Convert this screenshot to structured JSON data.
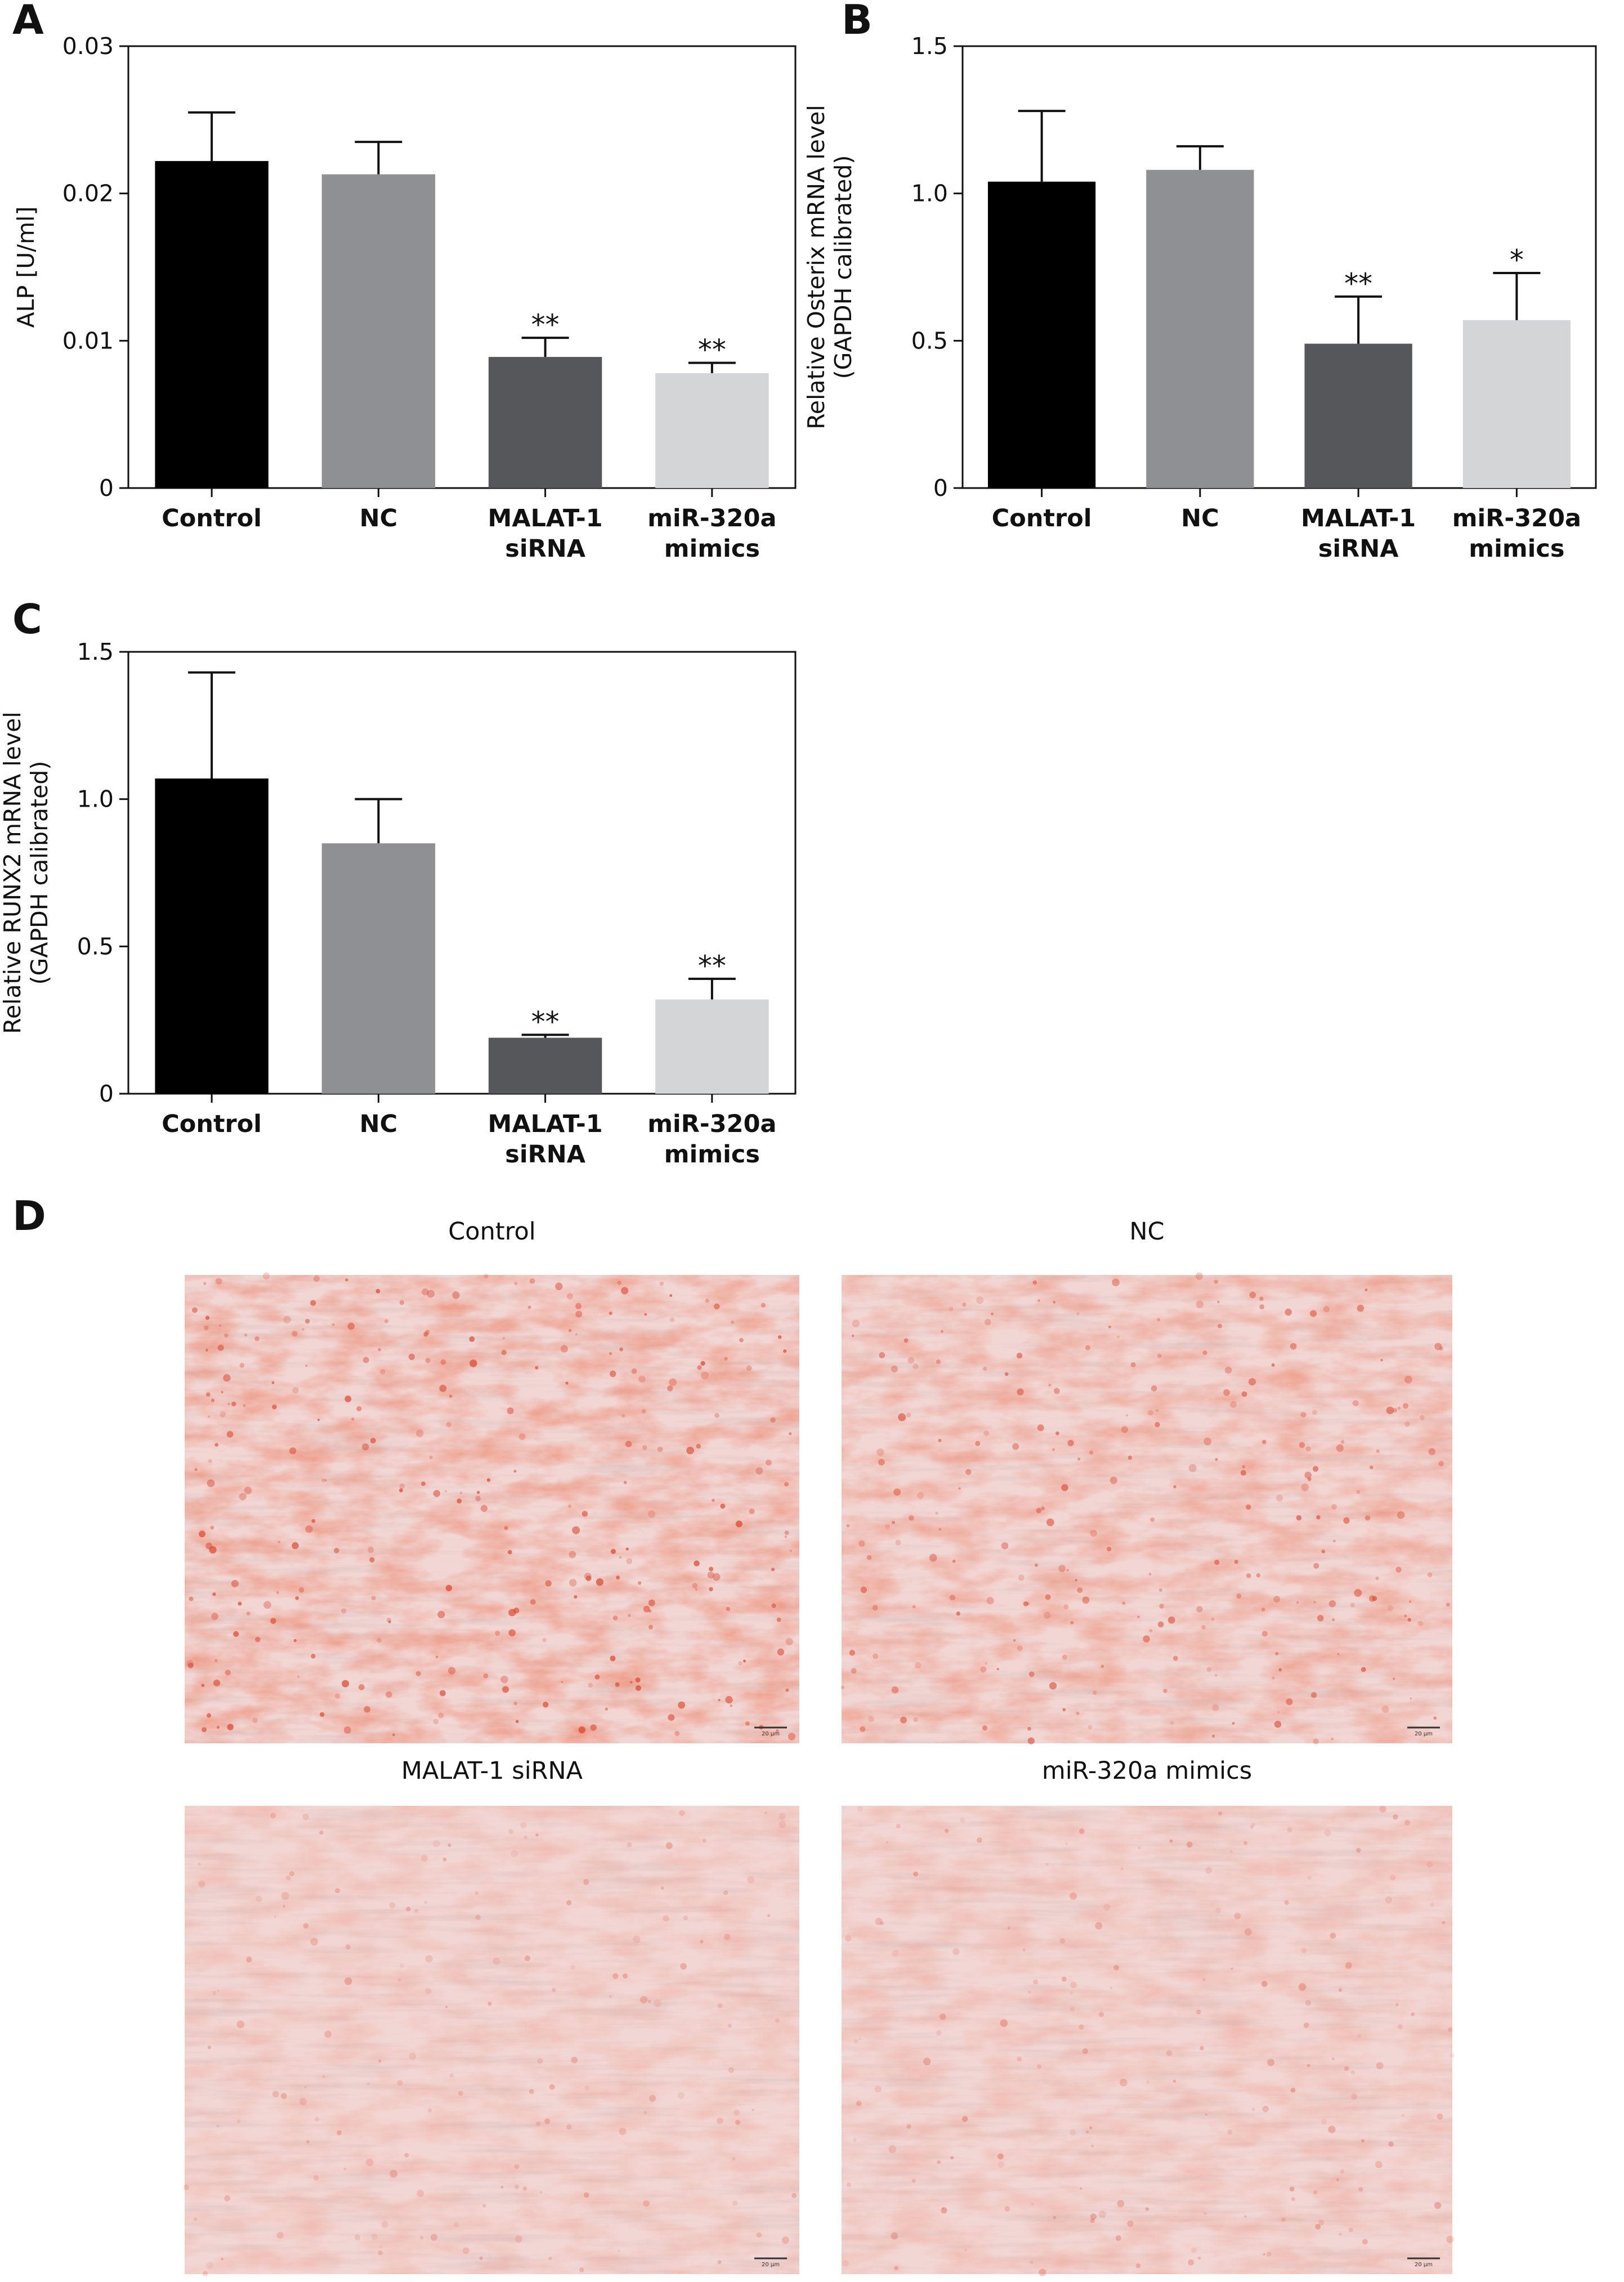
{
  "colors": {
    "Control": "#000000",
    "NC": "#8f9093",
    "MALAT-1 siRNA": "#55575a",
    "miR-320a mimics": "#d4d5d6",
    "stain_dark": "#d8452e",
    "stain_light": "#f2d6d4"
  },
  "chart_data": [
    {
      "panel": "A",
      "type": "bar",
      "categories": [
        "Control",
        "NC",
        "MALAT-1\nsiRNA",
        "miR-320a\nmimics"
      ],
      "values": [
        0.0222,
        0.0213,
        0.0089,
        0.0078
      ],
      "errors": [
        0.0033,
        0.0022,
        0.0013,
        0.0007
      ],
      "significance": [
        "",
        "",
        "**",
        "**"
      ],
      "ylabel": "ALP [U/ml]",
      "ylim": [
        0,
        0.03
      ],
      "yticks": [
        "0",
        "0.01",
        "0.02",
        "0.03"
      ],
      "ytick_values": [
        0,
        0.01,
        0.02,
        0.03
      ],
      "grid": false
    },
    {
      "panel": "B",
      "type": "bar",
      "categories": [
        "Control",
        "NC",
        "MALAT-1\nsiRNA",
        "miR-320a\nmimics"
      ],
      "values": [
        1.04,
        1.08,
        0.49,
        0.57
      ],
      "errors": [
        0.24,
        0.08,
        0.16,
        0.16
      ],
      "significance": [
        "",
        "",
        "**",
        "*"
      ],
      "ylabel": "Relative Osterix mRNA level\n(GAPDH calibrated)",
      "ylim": [
        0,
        1.5
      ],
      "yticks": [
        "0",
        "0.5",
        "1.0",
        "1.5"
      ],
      "ytick_values": [
        0,
        0.5,
        1.0,
        1.5
      ],
      "grid": false
    },
    {
      "panel": "C",
      "type": "bar",
      "categories": [
        "Control",
        "NC",
        "MALAT-1\nsiRNA",
        "miR-320a\nmimics"
      ],
      "values": [
        1.07,
        0.85,
        0.19,
        0.32
      ],
      "errors": [
        0.36,
        0.15,
        0.01,
        0.07
      ],
      "significance": [
        "",
        "",
        "**",
        "**"
      ],
      "ylabel": "Relative RUNX2 mRNA level\n(GAPDH calibrated)",
      "ylim": [
        0,
        1.5
      ],
      "yticks": [
        "0",
        "0.5",
        "1.0",
        "1.5"
      ],
      "ytick_values": [
        0,
        0.5,
        1.0,
        1.5
      ],
      "grid": false
    }
  ],
  "panel_d": {
    "letter": "D",
    "images": [
      {
        "title": "Control",
        "scale": "20 μm",
        "stain_intensity": 0.85
      },
      {
        "title": "NC",
        "scale": "20 μm",
        "stain_intensity": 0.72
      },
      {
        "title": "MALAT-1 siRNA",
        "scale": "20 μm",
        "stain_intensity": 0.35
      },
      {
        "title": "miR-320a mimics",
        "scale": "20 μm",
        "stain_intensity": 0.4
      }
    ]
  }
}
